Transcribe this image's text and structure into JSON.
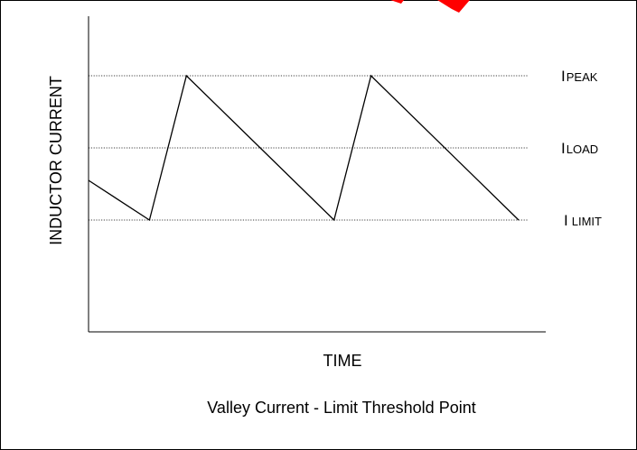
{
  "diagram": {
    "ylabel": "INDUCTOR CURRENT",
    "xlabel": "TIME",
    "caption": "Valley Current - Limit Threshold Point",
    "levels": [
      {
        "key": "peak",
        "main": "I",
        "sub": "PEAK",
        "value": 3
      },
      {
        "key": "load",
        "main": "I",
        "sub": "LOAD",
        "value": 2
      },
      {
        "key": "limit",
        "main": "I",
        "sub": "LIMIT",
        "value": 1
      }
    ],
    "waveform": {
      "unit_note": "",
      "points": [
        {
          "t": 0.0,
          "i": 1.55
        },
        {
          "t": 1.65,
          "i": 1.0
        },
        {
          "t": 2.65,
          "i": 3.0
        },
        {
          "t": 6.65,
          "i": 1.0
        },
        {
          "t": 7.65,
          "i": 3.0
        },
        {
          "t": 11.65,
          "i": 1.0
        }
      ]
    },
    "colors": {
      "line": "#000000",
      "grid": "#000000",
      "accent_mark": "#ff0000"
    }
  }
}
